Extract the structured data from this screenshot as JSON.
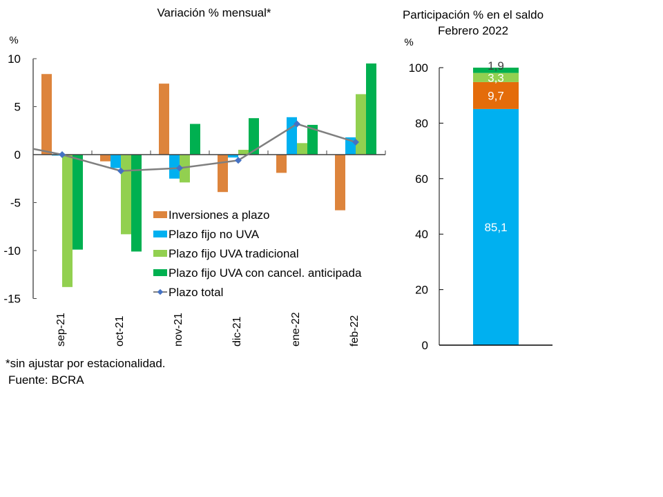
{
  "chart_data": [
    {
      "type": "bar",
      "title": "Variación % mensual*",
      "ylabel": "%",
      "xlabel": "",
      "ylim": [
        -15,
        10
      ],
      "yticks": [
        10,
        5,
        0,
        -5,
        -10,
        -15
      ],
      "grid": false,
      "legend_position": "center-right",
      "categories": [
        "sep-21",
        "oct-21",
        "nov-21",
        "dic-21",
        "ene-22",
        "feb-22"
      ],
      "series": [
        {
          "name": "Inversiones a plazo",
          "kind": "bar",
          "color": "#DD843C",
          "values": [
            8.4,
            -0.7,
            7.4,
            -3.9,
            -1.9,
            -5.8
          ]
        },
        {
          "name": "Plazo fijo no UVA",
          "kind": "bar",
          "color": "#00B0F0",
          "values": [
            -0.1,
            -1.4,
            -2.5,
            -0.3,
            3.9,
            1.8
          ]
        },
        {
          "name": "Plazo fijo UVA tradicional",
          "kind": "bar",
          "color": "#92D050",
          "values": [
            -13.8,
            -8.3,
            -2.9,
            0.5,
            1.2,
            6.3
          ]
        },
        {
          "name": "Plazo fijo UVA con cancel. anticipada",
          "kind": "bar",
          "color": "#00B050",
          "values": [
            -9.9,
            -10.1,
            3.2,
            3.8,
            3.1,
            9.5
          ]
        },
        {
          "name": "Plazo total",
          "kind": "line",
          "color": "#7F7F7F",
          "marker_color": "#4472C4",
          "start_value": 0.6,
          "values": [
            0.0,
            -1.7,
            -1.4,
            -0.6,
            3.2,
            1.3
          ]
        }
      ]
    },
    {
      "type": "bar",
      "stacked": true,
      "title": "Participación % en el saldo",
      "subtitle": "Febrero 2022",
      "ylabel": "%",
      "ylim": [
        0,
        100
      ],
      "yticks": [
        100,
        80,
        60,
        40,
        20,
        0
      ],
      "grid": false,
      "categories": [
        "Febrero 2022"
      ],
      "series": [
        {
          "name": "Plazo fijo no UVA",
          "color": "#00B0F0",
          "value": 85.1,
          "label": "85,1",
          "label_color": "#FFFFFF"
        },
        {
          "name": "Inversiones a plazo",
          "color": "#E46C0A",
          "value": 9.7,
          "label": "9,7",
          "label_color": "#FFFFFF"
        },
        {
          "name": "Plazo fijo UVA tradicional",
          "color": "#92D050",
          "value": 3.3,
          "label": "3,3",
          "label_color": "#FFFFFF"
        },
        {
          "name": "Plazo fijo UVA con cancel. anticipada",
          "color": "#00B050",
          "value": 1.9,
          "label": "1,9",
          "label_color": "#404040"
        }
      ]
    }
  ],
  "footnotes": {
    "note": "*sin ajustar por estacionalidad.",
    "source": "Fuente: BCRA"
  }
}
